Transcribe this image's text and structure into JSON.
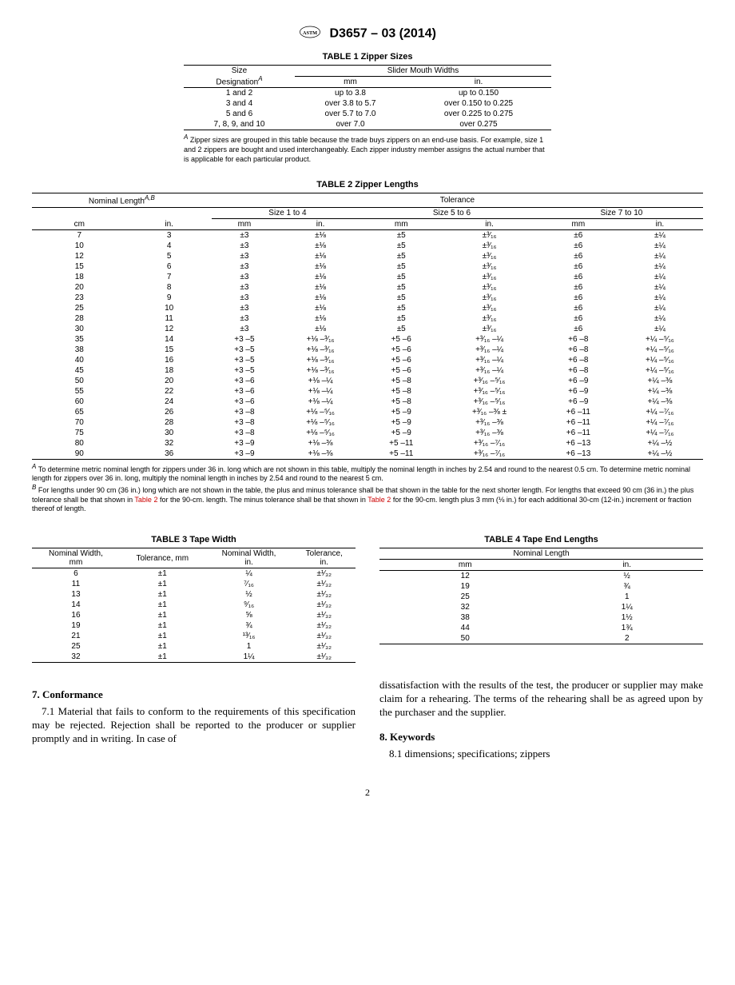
{
  "header": {
    "doc_number": "D3657 – 03 (2014)"
  },
  "table1": {
    "caption": "TABLE 1 Zipper Sizes",
    "h_size": "Size",
    "h_desig": "Designation",
    "h_sup": "A",
    "h_smw": "Slider Mouth Widths",
    "h_mm": "mm",
    "h_in": "in.",
    "rows": [
      {
        "d": "1 and 2",
        "mm": "up to 3.8",
        "in": "up to 0.150"
      },
      {
        "d": "3 and 4",
        "mm": "over 3.8 to 5.7",
        "in": "over 0.150 to 0.225"
      },
      {
        "d": "5 and 6",
        "mm": "over 5.7 to 7.0",
        "in": "over 0.225 to 0.275"
      },
      {
        "d": "7, 8, 9, and 10",
        "mm": "over 7.0",
        "in": "over 0.275"
      }
    ],
    "footnote": "Zipper sizes are grouped in this table because the trade buys zippers on an end-use basis. For example, size 1 and 2 zippers are bought and used interchangeably. Each zipper industry member assigns the actual number that is applicable for each particular product."
  },
  "table2": {
    "caption": "TABLE 2 Zipper Lengths",
    "h_nom": "Nominal Length",
    "h_supA": "A",
    "h_supB": "B",
    "h_tol": "Tolerance",
    "h_s14": "Size 1 to 4",
    "h_s56": "Size 5 to 6",
    "h_s710": "Size 7 to 10",
    "h_cm": "cm",
    "h_in": "in.",
    "h_mm": "mm",
    "rows": [
      {
        "cm": "7",
        "in": "3",
        "s1mm": "±3",
        "s1in": "±⅛",
        "s5mm": "±5",
        "s5in": "±³⁄₁₆",
        "s7mm": "±6",
        "s7in": "±¼"
      },
      {
        "cm": "10",
        "in": "4",
        "s1mm": "±3",
        "s1in": "±⅛",
        "s5mm": "±5",
        "s5in": "±³⁄₁₆",
        "s7mm": "±6",
        "s7in": "±¼"
      },
      {
        "cm": "12",
        "in": "5",
        "s1mm": "±3",
        "s1in": "±⅛",
        "s5mm": "±5",
        "s5in": "±³⁄₁₆",
        "s7mm": "±6",
        "s7in": "±¼"
      },
      {
        "cm": "15",
        "in": "6",
        "s1mm": "±3",
        "s1in": "±⅛",
        "s5mm": "±5",
        "s5in": "±³⁄₁₆",
        "s7mm": "±6",
        "s7in": "±¼"
      },
      {
        "cm": "18",
        "in": "7",
        "s1mm": "±3",
        "s1in": "±⅛",
        "s5mm": "±5",
        "s5in": "±³⁄₁₆",
        "s7mm": "±6",
        "s7in": "±¼"
      },
      {
        "cm": "20",
        "in": "8",
        "s1mm": "±3",
        "s1in": "±⅛",
        "s5mm": "±5",
        "s5in": "±³⁄₁₆",
        "s7mm": "±6",
        "s7in": "±¼"
      },
      {
        "cm": "23",
        "in": "9",
        "s1mm": "±3",
        "s1in": "±⅛",
        "s5mm": "±5",
        "s5in": "±³⁄₁₆",
        "s7mm": "±6",
        "s7in": "±¼"
      },
      {
        "cm": "25",
        "in": "10",
        "s1mm": "±3",
        "s1in": "±⅛",
        "s5mm": "±5",
        "s5in": "±³⁄₁₆",
        "s7mm": "±6",
        "s7in": "±¼"
      },
      {
        "cm": "28",
        "in": "11",
        "s1mm": "±3",
        "s1in": "±⅛",
        "s5mm": "±5",
        "s5in": "±³⁄₁₆",
        "s7mm": "±6",
        "s7in": "±¼"
      },
      {
        "cm": "30",
        "in": "12",
        "s1mm": "±3",
        "s1in": "±⅛",
        "s5mm": "±5",
        "s5in": "±³⁄₁₆",
        "s7mm": "±6",
        "s7in": "±¼"
      },
      {
        "cm": "35",
        "in": "14",
        "s1mm": "+3 –5",
        "s1in": "+⅛ –³⁄₁₆",
        "s5mm": "+5 –6",
        "s5in": "+³⁄₁₆ –¼",
        "s7mm": "+6 –8",
        "s7in": "+¼ –⁵⁄₁₆"
      },
      {
        "cm": "38",
        "in": "15",
        "s1mm": "+3 –5",
        "s1in": "+⅛ –³⁄₁₆",
        "s5mm": "+5 –6",
        "s5in": "+³⁄₁₆ –¼",
        "s7mm": "+6 –8",
        "s7in": "+¼ –⁵⁄₁₆"
      },
      {
        "cm": "40",
        "in": "16",
        "s1mm": "+3 –5",
        "s1in": "+⅛ –³⁄₁₆",
        "s5mm": "+5 –6",
        "s5in": "+³⁄₁₆ –¼",
        "s7mm": "+6 –8",
        "s7in": "+¼ –⁵⁄₁₆"
      },
      {
        "cm": "45",
        "in": "18",
        "s1mm": "+3 –5",
        "s1in": "+⅛ –³⁄₁₆",
        "s5mm": "+5 –6",
        "s5in": "+³⁄₁₆ –¼",
        "s7mm": "+6 –8",
        "s7in": "+¼ –⁵⁄₁₆"
      },
      {
        "cm": "50",
        "in": "20",
        "s1mm": "+3 –6",
        "s1in": "+⅛ –¼",
        "s5mm": "+5 –8",
        "s5in": "+³⁄₁₆ –⁵⁄₁₆",
        "s7mm": "+6 –9",
        "s7in": "+¼ –⅜"
      },
      {
        "cm": "55",
        "in": "22",
        "s1mm": "+3 –6",
        "s1in": "+⅛ –¼",
        "s5mm": "+5 –8",
        "s5in": "+³⁄₁₆ –⁵⁄₁₆",
        "s7mm": "+6 –9",
        "s7in": "+¼ –⅜"
      },
      {
        "cm": "60",
        "in": "24",
        "s1mm": "+3 –6",
        "s1in": "+⅛ –¼",
        "s5mm": "+5 –8",
        "s5in": "+³⁄₁₆ –⁵⁄₁₆",
        "s7mm": "+6 –9",
        "s7in": "+¼ –⅜"
      },
      {
        "cm": "65",
        "in": "26",
        "s1mm": "+3 –8",
        "s1in": "+⅛ –⁵⁄₁₆",
        "s5mm": "+5 –9",
        "s5in": "+³⁄₁₆ –⅜ ±",
        "s7mm": "+6 –11",
        "s7in": "+¼ –⁷⁄₁₆"
      },
      {
        "cm": "70",
        "in": "28",
        "s1mm": "+3 –8",
        "s1in": "+⅛ –⁵⁄₁₆",
        "s5mm": "+5 –9",
        "s5in": "+³⁄₁₆ –⅜",
        "s7mm": "+6 –11",
        "s7in": "+¼ –⁷⁄₁₆"
      },
      {
        "cm": "75",
        "in": "30",
        "s1mm": "+3 –8",
        "s1in": "+⅛ –⁵⁄₁₆",
        "s5mm": "+5 –9",
        "s5in": "+³⁄₁₆ –⅜",
        "s7mm": "+6 –11",
        "s7in": "+¼ –⁷⁄₁₆"
      },
      {
        "cm": "80",
        "in": "32",
        "s1mm": "+3 –9",
        "s1in": "+⅛ –⅜",
        "s5mm": "+5 –11",
        "s5in": "+³⁄₁₆ –⁷⁄₁₆",
        "s7mm": "+6 –13",
        "s7in": "+¼ –½"
      },
      {
        "cm": "90",
        "in": "36",
        "s1mm": "+3 –9",
        "s1in": "+⅛ –⅜",
        "s5mm": "+5 –11",
        "s5in": "+³⁄₁₆ –⁷⁄₁₆",
        "s7mm": "+6 –13",
        "s7in": "+¼ –½"
      }
    ],
    "fnA": "To determine metric nominal length for zippers under 36 in. long which are not shown in this table, multiply the nominal length in inches by 2.54 and round to the nearest 0.5 cm. To determine metric nominal length for zippers over 36 in. long, multiply the nominal length in inches by 2.54 and round to the nearest 5 cm.",
    "fnB_1": "For lengths under 90 cm (36 in.) long which are not shown in the table, the plus and minus tolerance shall be that shown in the table for the next shorter length. For lengths that exceed 90 cm (36 in.) the plus tolerance shall be that shown in ",
    "fnB_link1": "Table 2",
    "fnB_2": " for the 90-cm. length. The minus tolerance shall be that shown in ",
    "fnB_link2": "Table 2",
    "fnB_3": " for the 90-cm. length plus 3 mm (⅛ in.) for each additional 30-cm (12-in.) increment or fraction thereof of length."
  },
  "table3": {
    "caption": "TABLE 3 Tape Width",
    "h_nw_mm": "Nominal Width,\nmm",
    "h_tol_mm": "Tolerance, mm",
    "h_nw_in": "Nominal Width,\nin.",
    "h_tol_in": "Tolerance,\nin.",
    "rows": [
      {
        "nwmm": "6",
        "tolmm": "±1",
        "nwin": "¼",
        "tolin": "±¹⁄₃₂"
      },
      {
        "nwmm": "11",
        "tolmm": "±1",
        "nwin": "⁷⁄₁₆",
        "tolin": "±¹⁄₃₂"
      },
      {
        "nwmm": "13",
        "tolmm": "±1",
        "nwin": "½",
        "tolin": "±¹⁄₃₂"
      },
      {
        "nwmm": "14",
        "tolmm": "±1",
        "nwin": "⁹⁄₁₆",
        "tolin": "±¹⁄₃₂"
      },
      {
        "nwmm": "16",
        "tolmm": "±1",
        "nwin": "⅝",
        "tolin": "±¹⁄₃₂"
      },
      {
        "nwmm": "19",
        "tolmm": "±1",
        "nwin": "¾",
        "tolin": "±¹⁄₃₂"
      },
      {
        "nwmm": "21",
        "tolmm": "±1",
        "nwin": "¹³⁄₁₆",
        "tolin": "±¹⁄₃₂"
      },
      {
        "nwmm": "25",
        "tolmm": "±1",
        "nwin": "1",
        "tolin": "±¹⁄₃₂"
      },
      {
        "nwmm": "32",
        "tolmm": "±1",
        "nwin": "1¼",
        "tolin": "±¹⁄₃₂"
      }
    ]
  },
  "table4": {
    "caption": "TABLE 4 Tape End Lengths",
    "h_nom": "Nominal Length",
    "h_mm": "mm",
    "h_in": "in.",
    "rows": [
      {
        "mm": "12",
        "in": "½"
      },
      {
        "mm": "19",
        "in": "¾"
      },
      {
        "mm": "25",
        "in": "1"
      },
      {
        "mm": "32",
        "in": "1¼"
      },
      {
        "mm": "38",
        "in": "1½"
      },
      {
        "mm": "44",
        "in": "1¾"
      },
      {
        "mm": "50",
        "in": "2"
      }
    ]
  },
  "body": {
    "s7_title": "7.  Conformance",
    "s7_1": "7.1 Material that fails to conform to the requirements of this specification may be rejected. Rejection shall be reported to the producer or supplier promptly and in writing. In case of",
    "s7_cont": "dissatisfaction with the results of the test, the producer or supplier may make claim for a rehearing. The terms of the rehearing shall be as agreed upon by the purchaser and the supplier.",
    "s8_title": "8.  Keywords",
    "s8_1": "8.1 dimensions; specifications; zippers"
  },
  "page_num": "2"
}
